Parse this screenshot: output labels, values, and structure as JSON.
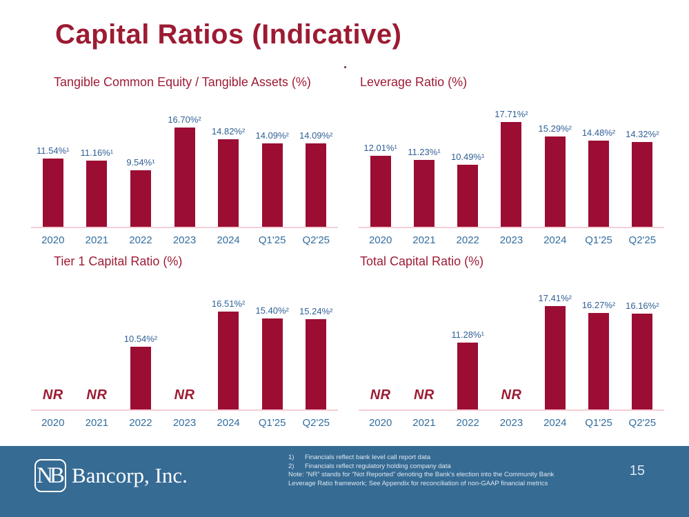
{
  "slide": {
    "title": "Capital Ratios (Indicative)"
  },
  "colors": {
    "bar": "#9c0d33",
    "maroon_text": "#9c1b33",
    "data_label_blue": "#2f5f95",
    "axis_label_blue": "#336d9e",
    "axis_line_pink": "#f5cdd6",
    "footer_blue": "#366b94"
  },
  "chart_data": [
    {
      "type": "bar",
      "title": "Tangible Common Equity / Tangible Assets (%)",
      "categories": [
        "2020",
        "2021",
        "2022",
        "2023",
        "2024",
        "Q1'25",
        "Q2'25"
      ],
      "values": [
        11.54,
        11.16,
        9.54,
        16.7,
        14.82,
        14.09,
        14.09
      ],
      "labels": [
        "11.54%¹",
        "11.16%¹",
        "9.54%¹",
        "16.70%²",
        "14.82%²",
        "14.09%²",
        "14.09%²"
      ],
      "ylim": [
        0,
        20
      ],
      "grid": false,
      "legend": false
    },
    {
      "type": "bar",
      "title": "Leverage Ratio (%)",
      "categories": [
        "2020",
        "2021",
        "2022",
        "2023",
        "2024",
        "Q1'25",
        "Q2'25"
      ],
      "values": [
        12.01,
        11.23,
        10.49,
        17.71,
        15.29,
        14.48,
        14.32
      ],
      "labels": [
        "12.01%¹",
        "11.23%¹",
        "10.49%¹",
        "17.71%²",
        "15.29%²",
        "14.48%²",
        "14.32%²"
      ],
      "ylim": [
        0,
        20
      ],
      "grid": false,
      "legend": false
    },
    {
      "type": "bar",
      "title": "Tier 1 Capital Ratio (%)",
      "categories": [
        "2020",
        "2021",
        "2022",
        "2023",
        "2024",
        "Q1'25",
        "Q2'25"
      ],
      "values": [
        null,
        null,
        10.54,
        null,
        16.51,
        15.4,
        15.24
      ],
      "labels": [
        "NR",
        "NR",
        "10.54%²",
        "NR",
        "16.51%²",
        "15.40%²",
        "15.24%²"
      ],
      "not_reported_text": "NR",
      "ylim": [
        0,
        20
      ],
      "grid": false,
      "legend": false
    },
    {
      "type": "bar",
      "title": "Total Capital Ratio (%)",
      "categories": [
        "2020",
        "2021",
        "2022",
        "2023",
        "2024",
        "Q1'25",
        "Q2'25"
      ],
      "values": [
        null,
        null,
        11.28,
        null,
        17.41,
        16.27,
        16.16
      ],
      "labels": [
        "NR",
        "NR",
        "11.28%¹",
        "NR",
        "17.41%²",
        "16.27%²",
        "16.16%²"
      ],
      "not_reported_text": "NR",
      "ylim": [
        0,
        20
      ],
      "grid": false,
      "legend": false
    }
  ],
  "footer": {
    "logo_monogram": "NB",
    "logo_name": "Bancorp, Inc.",
    "footnotes": [
      {
        "marker": "1)",
        "text": "Financials reflect bank level call report data"
      },
      {
        "marker": "2)",
        "text": "Financials reflect regulatory holding company data"
      }
    ],
    "note": "Note: “NR” stands for “Not Reported” denoting the Bank’s election into the Community Bank Leverage Ratio framework; See Appendix for reconciliation of non-GAAP financial metrics",
    "page_number": "15"
  }
}
